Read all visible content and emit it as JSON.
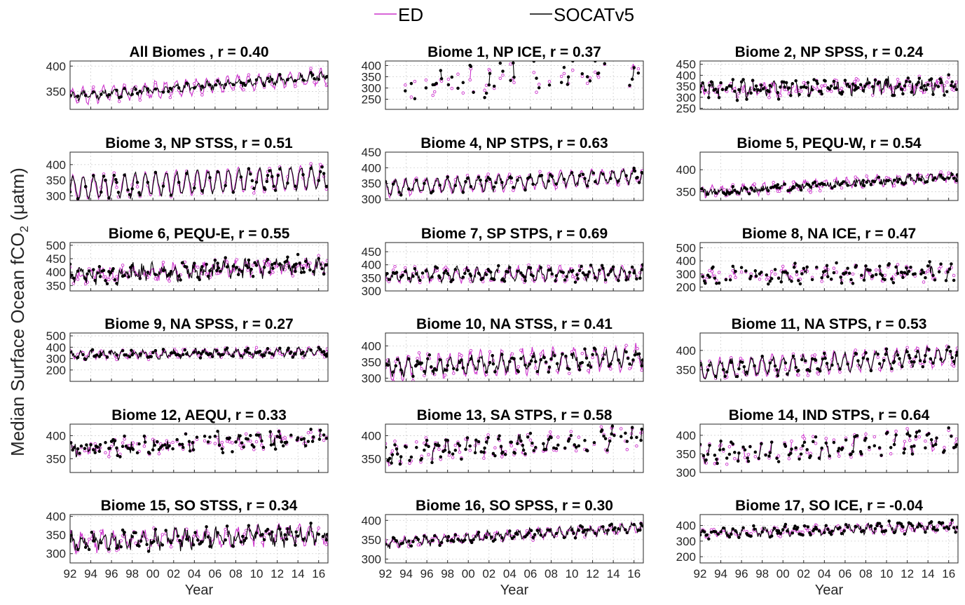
{
  "figure": {
    "ylabel": "Median Surface Ocean fCO",
    "ylabel_sub": "2",
    "ylabel_unit": " (μatm)",
    "xlabel": "Year",
    "legend": [
      {
        "name": "ED",
        "color": "#cc33cc"
      },
      {
        "name": "SOCATv5",
        "color": "#000000"
      }
    ],
    "xticks": [
      "92",
      "94",
      "96",
      "98",
      "00",
      "02",
      "04",
      "06",
      "08",
      "10",
      "12",
      "14",
      "16"
    ],
    "xrange": [
      1992,
      2016.9
    ]
  },
  "chart_data": [
    {
      "type": "line",
      "title": "All Biomes , r = 0.40",
      "ylim": [
        315,
        410
      ],
      "yticks": [
        350,
        400
      ],
      "profile": {
        "base": 340,
        "trend": 1.6,
        "ed_amp": 14,
        "soc_amp": 5,
        "noise": 6,
        "gap": 0.02,
        "phase": 0.2
      },
      "series": [
        {
          "name": "ED"
        },
        {
          "name": "SOCATv5"
        }
      ]
    },
    {
      "type": "line",
      "title": "Biome 1, NP ICE, r = 0.37",
      "ylim": [
        205,
        420
      ],
      "yticks": [
        250,
        300,
        350,
        400
      ],
      "profile": {
        "base": 310,
        "trend": 2.5,
        "ed_amp": 40,
        "soc_amp": 45,
        "noise": 45,
        "gap": 0.85,
        "phase": 0.6
      },
      "series": [
        {
          "name": "ED"
        },
        {
          "name": "SOCATv5"
        }
      ]
    },
    {
      "type": "line",
      "title": "Biome 2, NP SPSS, r = 0.24",
      "ylim": [
        245,
        465
      ],
      "yticks": [
        250,
        300,
        350,
        400,
        450
      ],
      "profile": {
        "base": 330,
        "trend": 1.2,
        "ed_amp": 20,
        "soc_amp": 20,
        "noise": 30,
        "gap": 0.25,
        "phase": 1.1
      },
      "series": [
        {
          "name": "ED"
        },
        {
          "name": "SOCATv5"
        }
      ]
    },
    {
      "type": "line",
      "title": "Biome 3, NP STSS, r = 0.51",
      "ylim": [
        285,
        440
      ],
      "yticks": [
        300,
        350,
        400
      ],
      "profile": {
        "base": 325,
        "trend": 1.5,
        "ed_amp": 38,
        "soc_amp": 35,
        "noise": 8,
        "gap": 0.03,
        "phase": 0.0
      },
      "series": [
        {
          "name": "ED"
        },
        {
          "name": "SOCATv5"
        }
      ]
    },
    {
      "type": "line",
      "title": "Biome 4, NP STPS, r = 0.63",
      "ylim": [
        295,
        450
      ],
      "yticks": [
        300,
        350,
        400,
        450
      ],
      "profile": {
        "base": 335,
        "trend": 1.6,
        "ed_amp": 25,
        "soc_amp": 20,
        "noise": 9,
        "gap": 0.05,
        "phase": 2.1
      },
      "series": [
        {
          "name": "ED"
        },
        {
          "name": "SOCATv5"
        }
      ]
    },
    {
      "type": "line",
      "title": "Biome 5, PEQU-W, r = 0.54",
      "ylim": [
        330,
        440
      ],
      "yticks": [
        350,
        400
      ],
      "profile": {
        "base": 348,
        "trend": 1.5,
        "ed_amp": 10,
        "soc_amp": 3,
        "noise": 8,
        "gap": 0.1,
        "phase": 0.7
      },
      "series": [
        {
          "name": "ED"
        },
        {
          "name": "SOCATv5"
        }
      ]
    },
    {
      "type": "line",
      "title": "Biome 6, PEQU-E, r = 0.55",
      "ylim": [
        330,
        510
      ],
      "yticks": [
        350,
        400,
        450,
        500
      ],
      "profile": {
        "base": 385,
        "trend": 1.7,
        "ed_amp": 15,
        "soc_amp": 18,
        "noise": 28,
        "gap": 0.12,
        "phase": 1.7
      },
      "series": [
        {
          "name": "ED"
        },
        {
          "name": "SOCATv5"
        }
      ]
    },
    {
      "type": "line",
      "title": "Biome 7, SP STPS, r = 0.69",
      "ylim": [
        300,
        485
      ],
      "yticks": [
        300,
        350,
        400,
        450
      ],
      "profile": {
        "base": 360,
        "trend": 0.3,
        "ed_amp": 25,
        "soc_amp": 20,
        "noise": 14,
        "gap": 0.18,
        "phase": 2.6
      },
      "series": [
        {
          "name": "ED"
        },
        {
          "name": "SOCATv5"
        }
      ]
    },
    {
      "type": "line",
      "title": "Biome 8, NA ICE, r = 0.47",
      "ylim": [
        170,
        540
      ],
      "yticks": [
        200,
        300,
        400,
        500
      ],
      "profile": {
        "base": 290,
        "trend": 1.0,
        "ed_amp": 40,
        "soc_amp": 40,
        "noise": 45,
        "gap": 0.55,
        "phase": 0.9
      },
      "series": [
        {
          "name": "ED"
        },
        {
          "name": "SOCATv5"
        }
      ]
    },
    {
      "type": "line",
      "title": "Biome 9, NA SPSS, r = 0.27",
      "ylim": [
        100,
        525
      ],
      "yticks": [
        200,
        300,
        400,
        500
      ],
      "profile": {
        "base": 330,
        "trend": 1.2,
        "ed_amp": 30,
        "soc_amp": 25,
        "noise": 25,
        "gap": 0.12,
        "phase": 1.3
      },
      "series": [
        {
          "name": "ED"
        },
        {
          "name": "SOCATv5"
        }
      ]
    },
    {
      "type": "line",
      "title": "Biome 10, NA STSS, r = 0.41",
      "ylim": [
        290,
        440
      ],
      "yticks": [
        300,
        350,
        400
      ],
      "profile": {
        "base": 330,
        "trend": 1.5,
        "ed_amp": 35,
        "soc_amp": 22,
        "noise": 14,
        "gap": 0.15,
        "phase": 0.4
      },
      "series": [
        {
          "name": "ED"
        },
        {
          "name": "SOCATv5"
        }
      ]
    },
    {
      "type": "line",
      "title": "Biome 11, NA STPS, r = 0.53",
      "ylim": [
        320,
        445
      ],
      "yticks": [
        350,
        400
      ],
      "profile": {
        "base": 350,
        "trend": 1.5,
        "ed_amp": 25,
        "soc_amp": 20,
        "noise": 8,
        "gap": 0.12,
        "phase": 1.9
      },
      "series": [
        {
          "name": "ED"
        },
        {
          "name": "SOCATv5"
        }
      ]
    },
    {
      "type": "line",
      "title": "Biome 12, AEQU, r = 0.33",
      "ylim": [
        320,
        425
      ],
      "yticks": [
        350,
        400
      ],
      "profile": {
        "base": 370,
        "trend": 1.1,
        "ed_amp": 10,
        "soc_amp": 10,
        "noise": 15,
        "gap": 0.55,
        "phase": 0.5
      },
      "series": [
        {
          "name": "ED"
        },
        {
          "name": "SOCATv5"
        }
      ]
    },
    {
      "type": "line",
      "title": "Biome 13, SA STPS, r = 0.58",
      "ylim": [
        320,
        425
      ],
      "yticks": [
        350,
        400
      ],
      "profile": {
        "base": 360,
        "trend": 1.5,
        "ed_amp": 22,
        "soc_amp": 18,
        "noise": 10,
        "gap": 0.6,
        "phase": 2.3
      },
      "series": [
        {
          "name": "ED"
        },
        {
          "name": "SOCATv5"
        }
      ]
    },
    {
      "type": "line",
      "title": "Biome 14, IND STPS, r = 0.64",
      "ylim": [
        300,
        430
      ],
      "yticks": [
        300,
        350,
        400
      ],
      "profile": {
        "base": 350,
        "trend": 1.6,
        "ed_amp": 28,
        "soc_amp": 25,
        "noise": 10,
        "gap": 0.6,
        "phase": 1.5
      },
      "series": [
        {
          "name": "ED"
        },
        {
          "name": "SOCATv5"
        }
      ]
    },
    {
      "type": "line",
      "title": "Biome 15, SO STSS, r = 0.34",
      "ylim": [
        275,
        405
      ],
      "yticks": [
        300,
        350,
        400
      ],
      "profile": {
        "base": 330,
        "trend": 0.9,
        "ed_amp": 20,
        "soc_amp": 15,
        "noise": 18,
        "gap": 0.08,
        "phase": 0.8
      },
      "series": [
        {
          "name": "ED"
        },
        {
          "name": "SOCATv5"
        }
      ]
    },
    {
      "type": "line",
      "title": "Biome 16, SO SPSS, r = 0.30",
      "ylim": [
        290,
        415
      ],
      "yticks": [
        300,
        350,
        400
      ],
      "profile": {
        "base": 342,
        "trend": 1.6,
        "ed_amp": 10,
        "soc_amp": 8,
        "noise": 9,
        "gap": 0.12,
        "phase": 2.8
      },
      "series": [
        {
          "name": "ED"
        },
        {
          "name": "SOCATv5"
        }
      ]
    },
    {
      "type": "line",
      "title": "Biome 17, SO ICE, r = -0.04",
      "ylim": [
        160,
        470
      ],
      "yticks": [
        200,
        300,
        400
      ],
      "profile": {
        "base": 350,
        "trend": 1.8,
        "ed_amp": 20,
        "soc_amp": 25,
        "noise": 20,
        "gap": 0.2,
        "phase": 0.3
      },
      "series": [
        {
          "name": "ED"
        },
        {
          "name": "SOCATv5"
        }
      ]
    }
  ]
}
